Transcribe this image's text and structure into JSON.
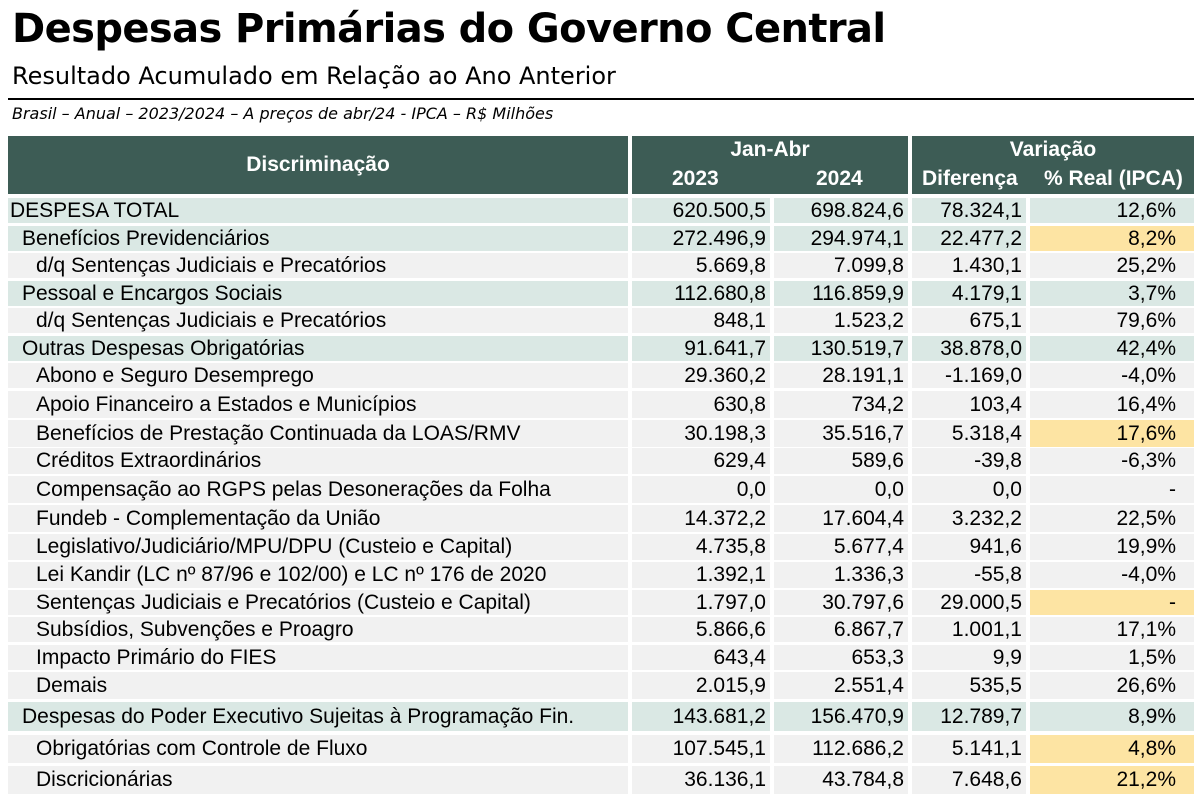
{
  "title": "Despesas Primárias do Governo Central",
  "subtitle": "Resultado Acumulado em Relação ao Ano Anterior",
  "note": "Brasil – Anual – 2023/2024 – A preços de abr/24 - IPCA – R$ Milhões",
  "header": {
    "discriminacao": "Discriminação",
    "period_group": "Jan-Abr",
    "year1": "2023",
    "year2": "2024",
    "variation_group": "Variação",
    "diff": "Diferença",
    "pct": "% Real (IPCA)"
  },
  "colors": {
    "header_bg": "#3d5c55",
    "teal_row": "#dae8e4",
    "grey_row": "#f1f1f1",
    "highlight": "#fde4a3"
  },
  "rows": [
    {
      "label": "DESPESA TOTAL",
      "v2023": "620.500,5",
      "v2024": "698.824,6",
      "diff": "78.324,1",
      "pct": "12,6%",
      "level": 0,
      "shade": "teal",
      "highlight": false
    },
    {
      "label": "Benefícios Previdenciários",
      "v2023": "272.496,9",
      "v2024": "294.974,1",
      "diff": "22.477,2",
      "pct": "8,2%",
      "level": 1,
      "shade": "teal",
      "highlight": true
    },
    {
      "label": "d/q Sentenças Judiciais e Precatórios",
      "v2023": "5.669,8",
      "v2024": "7.099,8",
      "diff": "1.430,1",
      "pct": "25,2%",
      "level": 2,
      "shade": "grey",
      "highlight": false
    },
    {
      "label": "Pessoal e Encargos Sociais",
      "v2023": "112.680,8",
      "v2024": "116.859,9",
      "diff": "4.179,1",
      "pct": "3,7%",
      "level": 1,
      "shade": "teal",
      "highlight": false
    },
    {
      "label": "d/q Sentenças Judiciais e Precatórios",
      "v2023": "848,1",
      "v2024": "1.523,2",
      "diff": "675,1",
      "pct": "79,6%",
      "level": 2,
      "shade": "grey",
      "highlight": false
    },
    {
      "label": "Outras Despesas Obrigatórias",
      "v2023": "91.641,7",
      "v2024": "130.519,7",
      "diff": "38.878,0",
      "pct": "42,4%",
      "level": 1,
      "shade": "teal",
      "highlight": false
    },
    {
      "label": "Abono e Seguro Desemprego",
      "v2023": "29.360,2",
      "v2024": "28.191,1",
      "diff": "-1.169,0",
      "pct": "-4,0%",
      "level": 2,
      "shade": "grey",
      "highlight": false
    },
    {
      "label": "Apoio Financeiro a Estados e Municípios",
      "v2023": "630,8",
      "v2024": "734,2",
      "diff": "103,4",
      "pct": "16,4%",
      "level": 2,
      "shade": "grey",
      "highlight": false
    },
    {
      "label": "Benefícios de Prestação Continuada da LOAS/RMV",
      "v2023": "30.198,3",
      "v2024": "35.516,7",
      "diff": "5.318,4",
      "pct": "17,6%",
      "level": 2,
      "shade": "grey",
      "highlight": true
    },
    {
      "label": "Créditos Extraordinários",
      "v2023": "629,4",
      "v2024": "589,6",
      "diff": "-39,8",
      "pct": "-6,3%",
      "level": 2,
      "shade": "grey",
      "highlight": false
    },
    {
      "label": "Compensação ao RGPS pelas Desonerações da Folha",
      "v2023": "0,0",
      "v2024": "0,0",
      "diff": "0,0",
      "pct": "-",
      "level": 2,
      "shade": "grey",
      "highlight": false
    },
    {
      "label": "Fundeb - Complementação da União",
      "v2023": "14.372,2",
      "v2024": "17.604,4",
      "diff": "3.232,2",
      "pct": "22,5%",
      "level": 2,
      "shade": "grey",
      "highlight": false
    },
    {
      "label": "Legislativo/Judiciário/MPU/DPU (Custeio e Capital)",
      "v2023": "4.735,8",
      "v2024": "5.677,4",
      "diff": "941,6",
      "pct": "19,9%",
      "level": 2,
      "shade": "grey",
      "highlight": false
    },
    {
      "label": "Lei Kandir (LC nº 87/96 e 102/00) e LC nº 176 de 2020",
      "v2023": "1.392,1",
      "v2024": "1.336,3",
      "diff": "-55,8",
      "pct": "-4,0%",
      "level": 2,
      "shade": "grey",
      "highlight": false
    },
    {
      "label": "Sentenças Judiciais e Precatórios (Custeio e Capital)",
      "v2023": "1.797,0",
      "v2024": "30.797,6",
      "diff": "29.000,5",
      "pct": "-",
      "level": 2,
      "shade": "grey",
      "highlight": true
    },
    {
      "label": "Subsídios, Subvenções e Proagro",
      "v2023": "5.866,6",
      "v2024": "6.867,7",
      "diff": "1.001,1",
      "pct": "17,1%",
      "level": 2,
      "shade": "grey",
      "highlight": false
    },
    {
      "label": "Impacto Primário do FIES",
      "v2023": "643,4",
      "v2024": "653,3",
      "diff": "9,9",
      "pct": "1,5%",
      "level": 2,
      "shade": "grey",
      "highlight": false
    },
    {
      "label": "Demais",
      "v2023": "2.015,9",
      "v2024": "2.551,4",
      "diff": "535,5",
      "pct": "26,6%",
      "level": 2,
      "shade": "grey",
      "highlight": false
    },
    {
      "label": "Despesas do Poder Executivo Sujeitas à Programação Fin.",
      "v2023": "143.681,2",
      "v2024": "156.470,9",
      "diff": "12.789,7",
      "pct": "8,9%",
      "level": 1,
      "shade": "teal",
      "highlight": false
    },
    {
      "label": "Obrigatórias com Controle de Fluxo",
      "v2023": "107.545,1",
      "v2024": "112.686,2",
      "diff": "5.141,1",
      "pct": "4,8%",
      "level": 2,
      "shade": "grey",
      "highlight": true
    },
    {
      "label": "Discricionárias",
      "v2023": "36.136,1",
      "v2024": "43.784,8",
      "diff": "7.648,6",
      "pct": "21,2%",
      "level": 2,
      "shade": "grey",
      "highlight": true
    }
  ]
}
